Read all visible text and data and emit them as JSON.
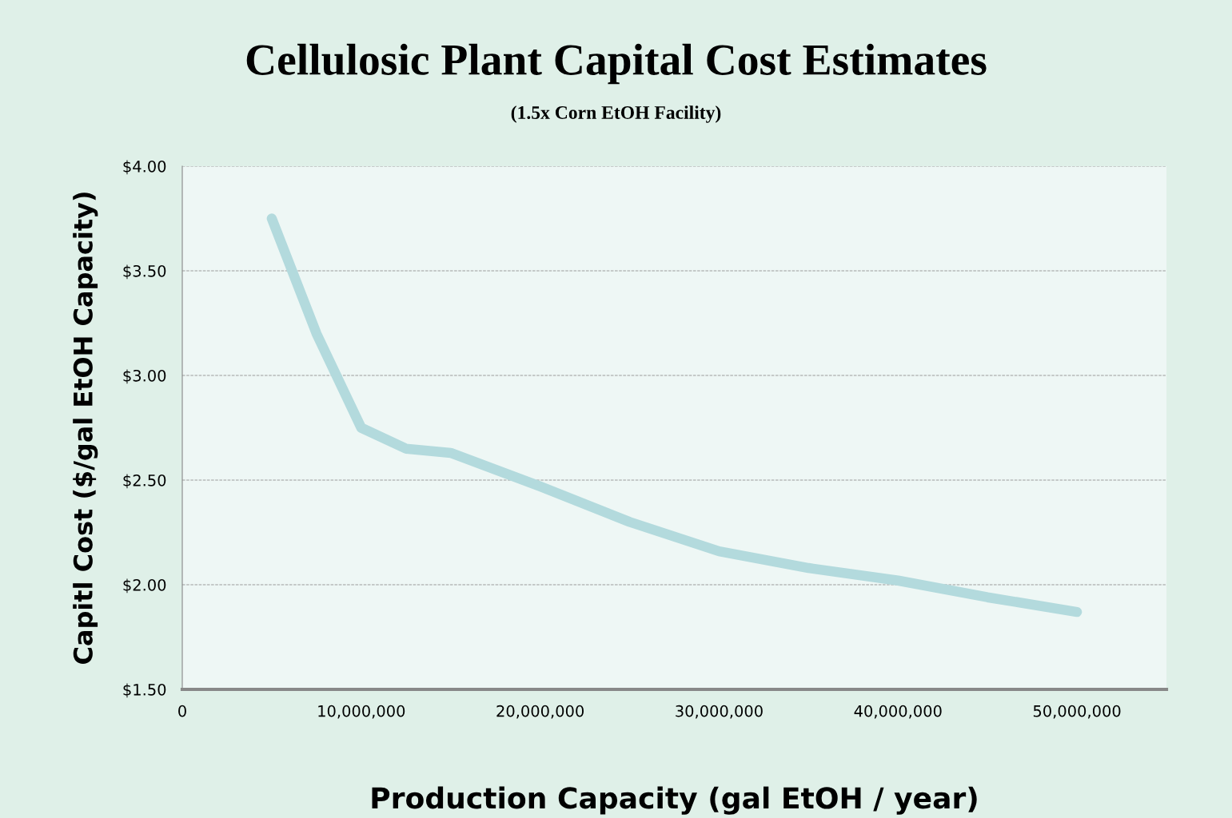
{
  "chart_data": {
    "type": "line",
    "title": "Cellulosic Plant Capital Cost Estimates",
    "subtitle": "(1.5x Corn EtOH Facility)",
    "xlabel": "Production Capacity (gal EtOH / year)",
    "ylabel": "Capitl Cost ($/gal EtOH Capacity)",
    "x": [
      5000000,
      7500000,
      10000000,
      12500000,
      15000000,
      20000000,
      25000000,
      30000000,
      35000000,
      40000000,
      45000000,
      50000000
    ],
    "series": [
      {
        "color": "#b3dadd",
        "values": [
          3.75,
          3.2,
          2.75,
          2.65,
          2.63,
          2.47,
          2.3,
          2.16,
          2.08,
          2.02,
          1.94,
          1.87
        ]
      }
    ],
    "xlim": [
      0,
      55000000
    ],
    "ylim": [
      1.5,
      4.0
    ],
    "xticks": [
      0,
      {
        "value": 10000000,
        "label": "10,000,000"
      },
      {
        "value": 20000000,
        "label": "20,000,000"
      },
      {
        "value": 30000000,
        "label": "30,000,000"
      },
      {
        "value": 40000000,
        "label": "40,000,000"
      },
      {
        "value": 50000000,
        "label": "50,000,000"
      }
    ],
    "yticks": [
      {
        "value": 1.5,
        "label": "$1.50"
      },
      {
        "value": 2.0,
        "label": "$2.00"
      },
      {
        "value": 2.5,
        "label": "$2.50"
      },
      {
        "value": 3.0,
        "label": "$3.00"
      },
      {
        "value": 3.5,
        "label": "$3.50"
      },
      {
        "value": 4.0,
        "label": "$4.00"
      }
    ],
    "grid": "y",
    "legend": false,
    "line_style": "solid"
  }
}
